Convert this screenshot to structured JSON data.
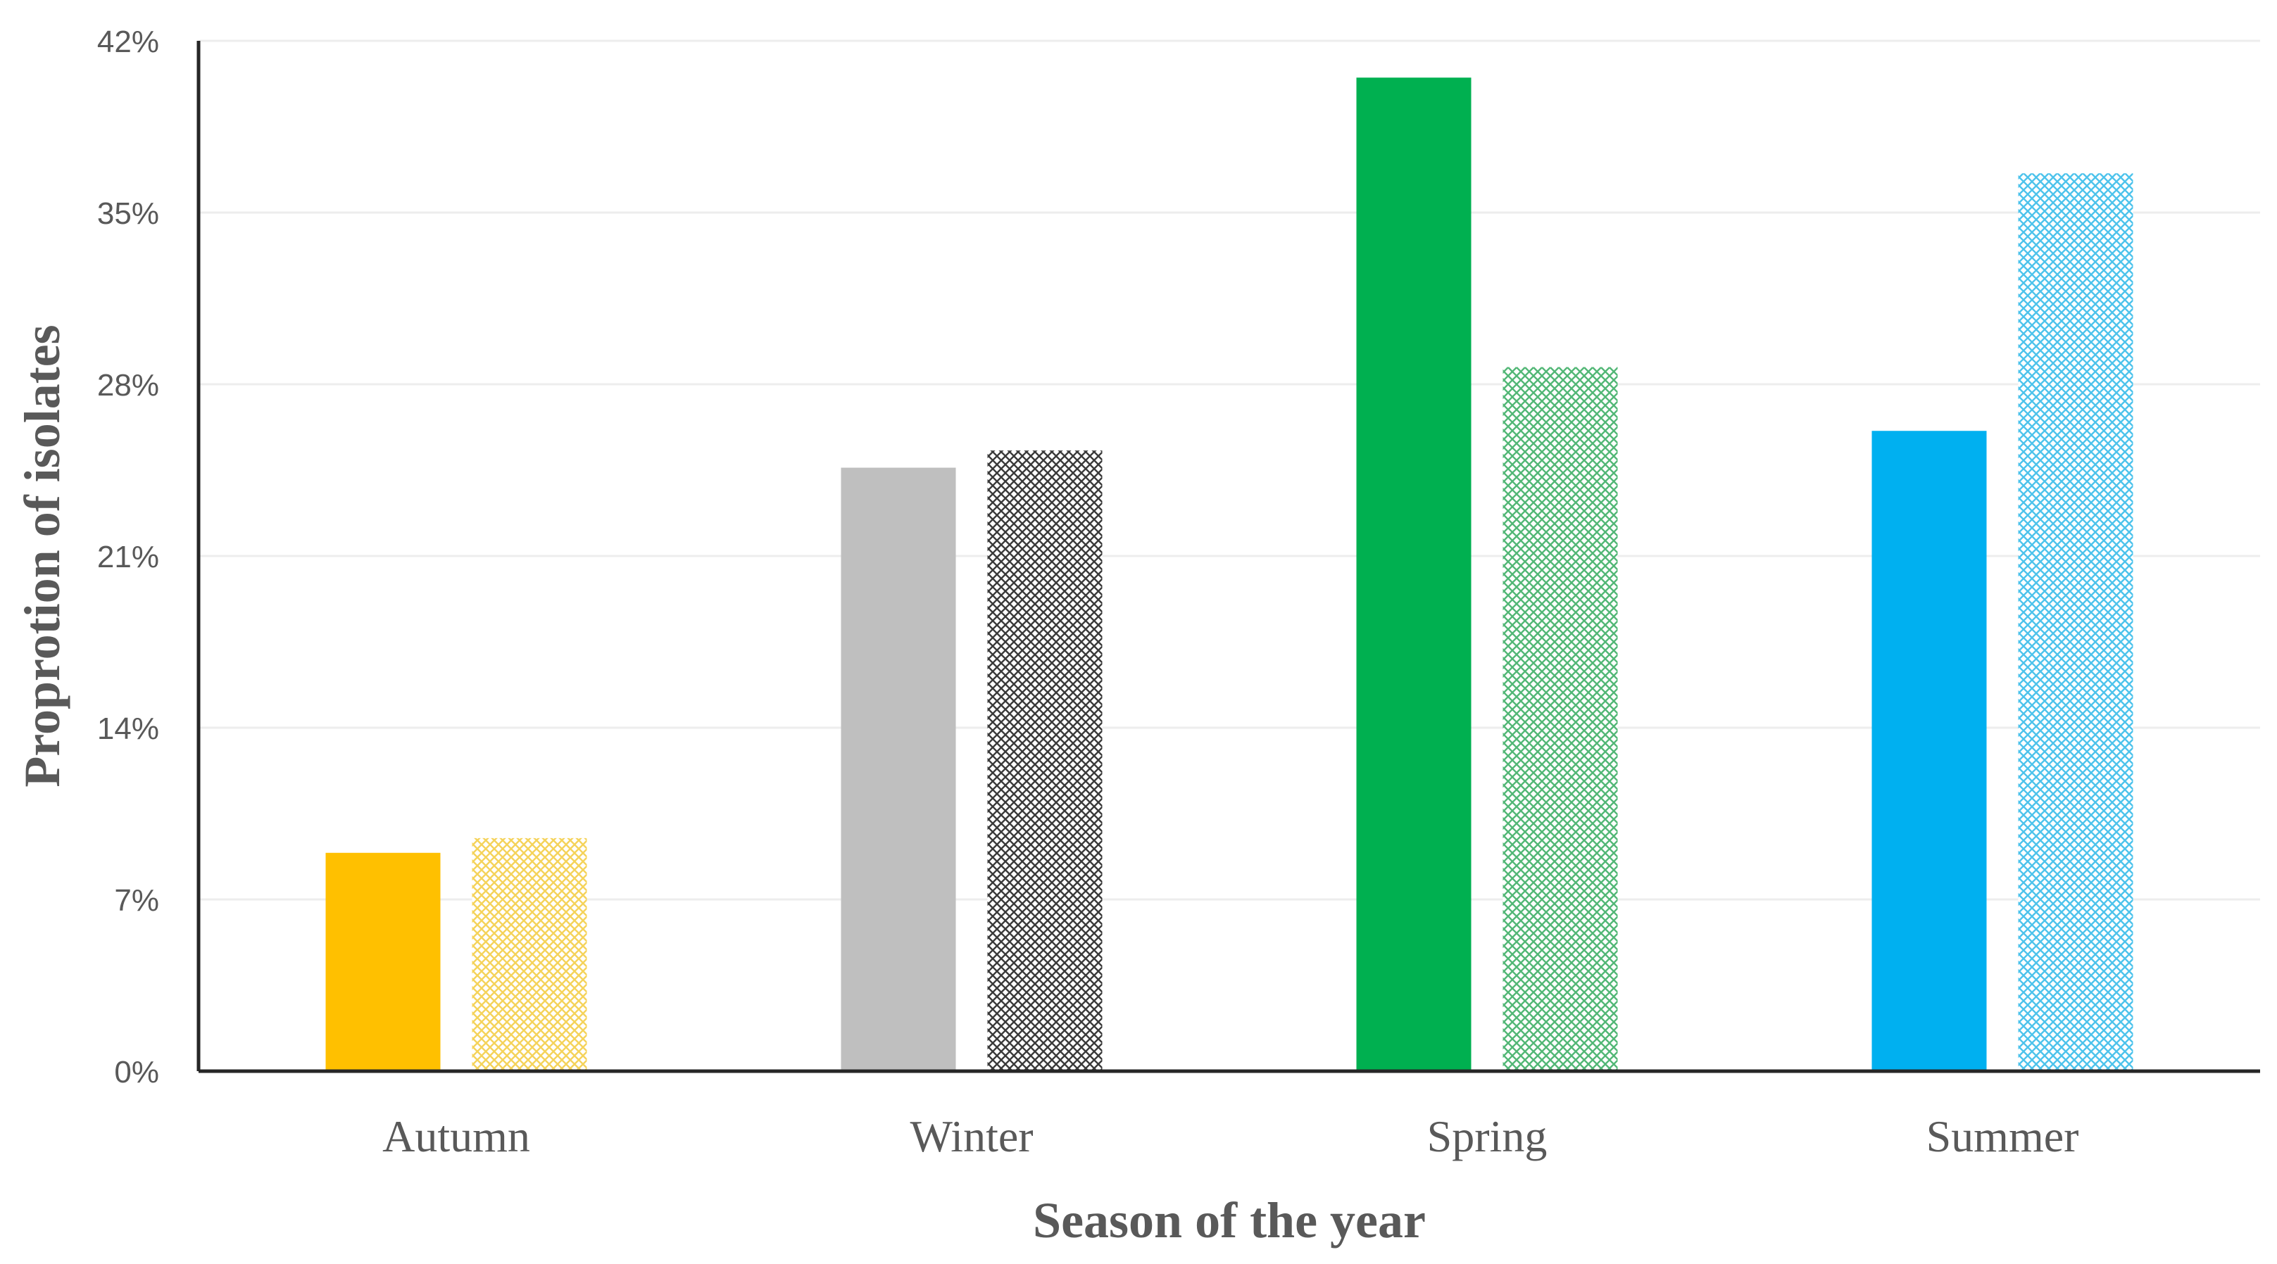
{
  "chart_data": {
    "type": "bar",
    "categories": [
      "Autumn",
      "Winter",
      "Spring",
      "Summer"
    ],
    "series": [
      {
        "fill": "solid",
        "values": [
          8.9,
          24.6,
          40.5,
          26.1
        ]
      },
      {
        "fill": "pattern",
        "values": [
          9.5,
          25.3,
          28.7,
          36.6
        ]
      }
    ],
    "bar_colors": [
      [
        "#FFC000",
        "#F5D35A"
      ],
      [
        "#BFBFBF",
        "#3A3A3A"
      ],
      [
        "#00B050",
        "#52B776"
      ],
      [
        "#00B0F0",
        "#4DC3EC"
      ]
    ],
    "yticks": [
      "0%",
      "7%",
      "14%",
      "21%",
      "28%",
      "35%",
      "42%"
    ],
    "ylim": [
      0,
      42
    ],
    "xlabel": "Season of the year",
    "ylabel": "Proprotion of isolates",
    "title": "",
    "grid": true,
    "legend": "none"
  }
}
